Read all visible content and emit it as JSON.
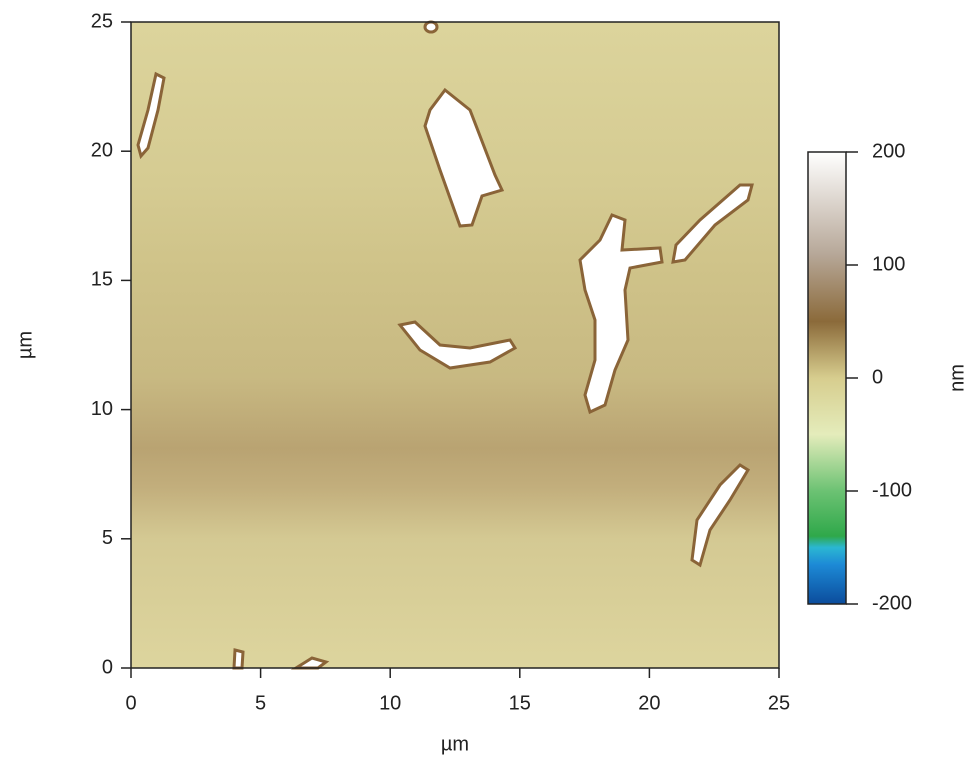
{
  "chart_data": {
    "type": "image",
    "xlabel": "µm",
    "ylabel": "µm",
    "xlim": [
      0,
      25
    ],
    "ylim": [
      0,
      25
    ],
    "xticks": [
      0,
      5,
      10,
      15,
      20,
      25
    ],
    "yticks": [
      0,
      5,
      10,
      15,
      20,
      25
    ],
    "colorbar": {
      "label": "nm",
      "lim": [
        -200,
        200
      ],
      "ticks": [
        -200,
        -100,
        0,
        100,
        200
      ],
      "colorscale": [
        {
          "value": -200,
          "color": "#0b4c9c"
        },
        {
          "value": -165,
          "color": "#1d8ad6"
        },
        {
          "value": -150,
          "color": "#2bb7d2"
        },
        {
          "value": -140,
          "color": "#2fa84a"
        },
        {
          "value": -100,
          "color": "#6cc273"
        },
        {
          "value": -50,
          "color": "#e4ecbb"
        },
        {
          "value": 0,
          "color": "#d7cd8e"
        },
        {
          "value": 50,
          "color": "#8b6a3a"
        },
        {
          "value": 110,
          "color": "#b7a899"
        },
        {
          "value": 200,
          "color": "#ffffff"
        }
      ]
    }
  }
}
